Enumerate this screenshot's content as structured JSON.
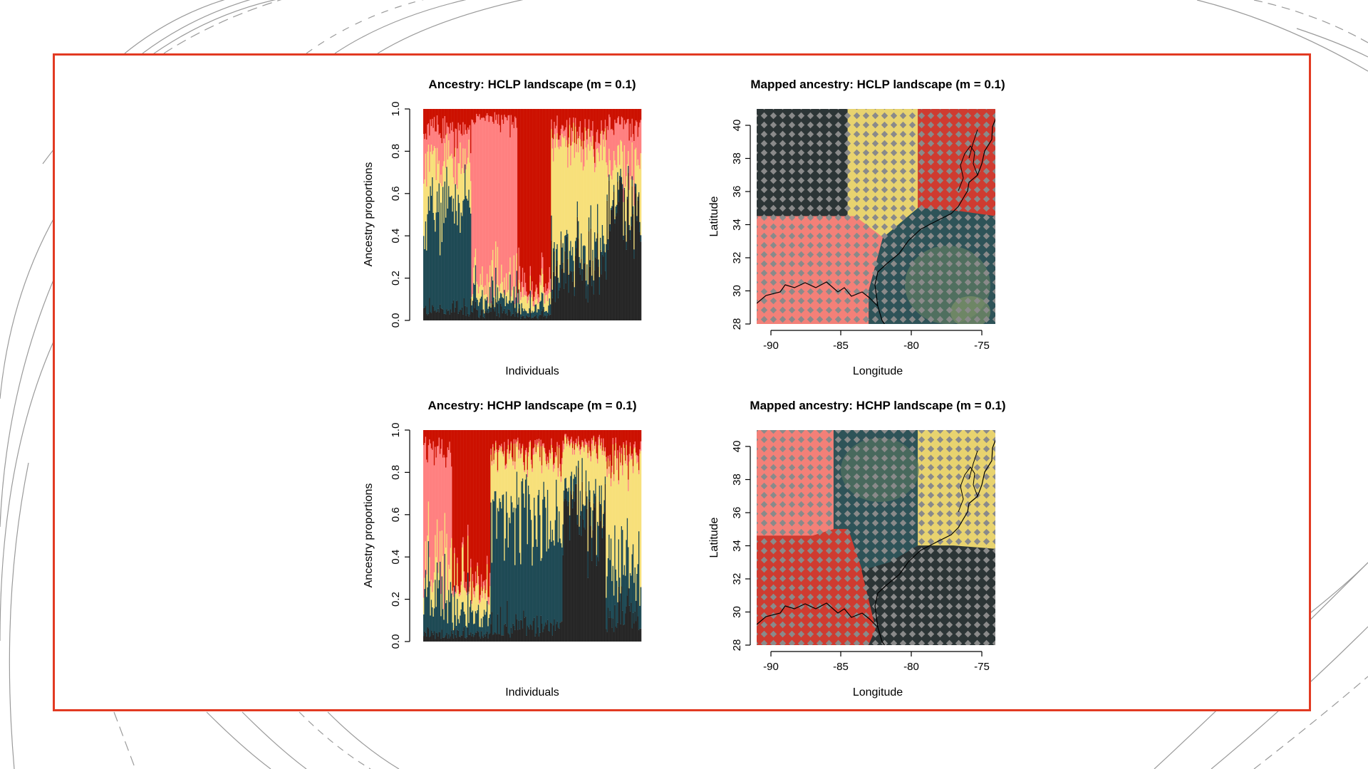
{
  "colors": {
    "frame": "#e23a22",
    "red": "#cc1100",
    "pink": "#ff8080",
    "yellow": "#f7e07a",
    "teal": "#1f4a55",
    "black": "#262626",
    "map_red": "#cf3b30",
    "map_pink": "#f38078",
    "map_yellow": "#e8d36f",
    "map_teal": "#2e5358",
    "map_black": "#2c3536",
    "map_olive": "#5f7c63",
    "dot": "#8a8a8a"
  },
  "chart_data": [
    {
      "type": "bar",
      "subtype": "stacked-barplot",
      "title": "Ancestry: HCLP landscape (m = 0.1)",
      "xlabel": "Individuals",
      "ylabel": "Ancestry proportions",
      "ylim": [
        0,
        1
      ],
      "yticks": [
        "0.0",
        "0.2",
        "0.4",
        "0.6",
        "0.8",
        "1.0"
      ],
      "series_order": [
        "black",
        "teal",
        "yellow",
        "pink",
        "red"
      ],
      "blocks": [
        {
          "n": 50,
          "black": 0.05,
          "teal": 0.48,
          "yellow": 0.22,
          "pink": 0.15,
          "red": 0.1
        },
        {
          "n": 48,
          "black": 0.04,
          "teal": 0.06,
          "yellow": 0.07,
          "pink": 0.78,
          "red": 0.05
        },
        {
          "n": 35,
          "black": 0.02,
          "teal": 0.04,
          "yellow": 0.06,
          "pink": 0.05,
          "red": 0.83
        },
        {
          "n": 58,
          "black": 0.24,
          "teal": 0.08,
          "yellow": 0.5,
          "pink": 0.07,
          "red": 0.11
        },
        {
          "n": 36,
          "black": 0.55,
          "teal": 0.03,
          "yellow": 0.17,
          "pink": 0.17,
          "red": 0.08
        }
      ]
    },
    {
      "type": "heatmap",
      "subtype": "mapped-ancestry",
      "title": "Mapped ancestry: HCLP landscape (m = 0.1)",
      "xlabel": "Longitude",
      "ylabel": "Latitude",
      "xlim": [
        -91,
        -74
      ],
      "ylim": [
        28,
        41
      ],
      "xticks": [
        "-90",
        "-85",
        "-80",
        "-75"
      ],
      "yticks": [
        "28",
        "30",
        "32",
        "34",
        "36",
        "38",
        "40"
      ],
      "regions": [
        {
          "cluster": "black",
          "polygon": [
            [
              -91,
              41
            ],
            [
              -84.5,
              41
            ],
            [
              -84.5,
              34.5
            ],
            [
              -91,
              34.5
            ]
          ]
        },
        {
          "cluster": "yellow",
          "polygon": [
            [
              -84.5,
              41
            ],
            [
              -79.5,
              41
            ],
            [
              -79.5,
              35
            ],
            [
              -82,
              33.2
            ],
            [
              -84,
              34.5
            ],
            [
              -84.5,
              34.5
            ]
          ]
        },
        {
          "cluster": "red",
          "polygon": [
            [
              -79.5,
              41
            ],
            [
              -74,
              41
            ],
            [
              -74,
              34.5
            ],
            [
              -76.5,
              34.8
            ],
            [
              -79.5,
              35
            ]
          ]
        },
        {
          "cluster": "pink",
          "polygon": [
            [
              -91,
              34.5
            ],
            [
              -84,
              34.5
            ],
            [
              -82,
              33.2
            ],
            [
              -83,
              30
            ],
            [
              -83,
              28
            ],
            [
              -91,
              28
            ]
          ]
        },
        {
          "cluster": "teal",
          "polygon": [
            [
              -82,
              33.2
            ],
            [
              -79.5,
              35
            ],
            [
              -76.5,
              34.8
            ],
            [
              -74,
              34.5
            ],
            [
              -74,
              28
            ],
            [
              -83,
              28
            ],
            [
              -83,
              30
            ]
          ]
        }
      ]
    },
    {
      "type": "bar",
      "subtype": "stacked-barplot",
      "title": "Ancestry: HCHP landscape (m = 0.1)",
      "xlabel": "Individuals",
      "ylabel": "Ancestry proportions",
      "ylim": [
        0,
        1
      ],
      "yticks": [
        "0.0",
        "0.2",
        "0.4",
        "0.6",
        "0.8",
        "1.0"
      ],
      "series_order": [
        "black",
        "teal",
        "yellow",
        "pink",
        "red"
      ],
      "blocks": [
        {
          "n": 30,
          "black": 0.03,
          "teal": 0.22,
          "yellow": 0.12,
          "pink": 0.55,
          "red": 0.08
        },
        {
          "n": 40,
          "black": 0.03,
          "teal": 0.1,
          "yellow": 0.12,
          "pink": 0.03,
          "red": 0.72
        },
        {
          "n": 75,
          "black": 0.07,
          "teal": 0.53,
          "yellow": 0.28,
          "pink": 0.02,
          "red": 0.1
        },
        {
          "n": 45,
          "black": 0.6,
          "teal": 0.08,
          "yellow": 0.24,
          "pink": 0.02,
          "red": 0.06
        },
        {
          "n": 37,
          "black": 0.12,
          "teal": 0.25,
          "yellow": 0.48,
          "pink": 0.03,
          "red": 0.12
        }
      ]
    },
    {
      "type": "heatmap",
      "subtype": "mapped-ancestry",
      "title": "Mapped ancestry: HCHP landscape (m = 0.1)",
      "xlabel": "Longitude",
      "ylabel": "Latitude",
      "xlim": [
        -91,
        -74
      ],
      "ylim": [
        28,
        41
      ],
      "xticks": [
        "-90",
        "-85",
        "-80",
        "-75"
      ],
      "yticks": [
        "28",
        "30",
        "32",
        "34",
        "36",
        "38",
        "40"
      ],
      "regions": [
        {
          "cluster": "pink",
          "polygon": [
            [
              -91,
              41
            ],
            [
              -85.5,
              41
            ],
            [
              -85.5,
              35
            ],
            [
              -87,
              34.6
            ],
            [
              -91,
              34.6
            ]
          ]
        },
        {
          "cluster": "teal",
          "polygon": [
            [
              -85.5,
              41
            ],
            [
              -79.5,
              41
            ],
            [
              -79.5,
              34
            ],
            [
              -81.5,
              33
            ],
            [
              -83.5,
              32.5
            ],
            [
              -84.5,
              35
            ],
            [
              -85.5,
              35
            ]
          ]
        },
        {
          "cluster": "yellow",
          "polygon": [
            [
              -79.5,
              41
            ],
            [
              -74,
              41
            ],
            [
              -74,
              33.8
            ],
            [
              -77,
              34
            ],
            [
              -79.5,
              34
            ]
          ]
        },
        {
          "cluster": "red",
          "polygon": [
            [
              -91,
              34.6
            ],
            [
              -87,
              34.6
            ],
            [
              -85.5,
              35
            ],
            [
              -84.5,
              35
            ],
            [
              -83.5,
              32.5
            ],
            [
              -82.5,
              29
            ],
            [
              -83,
              28
            ],
            [
              -91,
              28
            ]
          ]
        },
        {
          "cluster": "black",
          "polygon": [
            [
              -83.5,
              32.5
            ],
            [
              -81.5,
              33
            ],
            [
              -79.5,
              34
            ],
            [
              -77,
              34
            ],
            [
              -74,
              33.8
            ],
            [
              -74,
              28
            ],
            [
              -83,
              28
            ],
            [
              -82.5,
              29
            ]
          ]
        }
      ]
    }
  ]
}
